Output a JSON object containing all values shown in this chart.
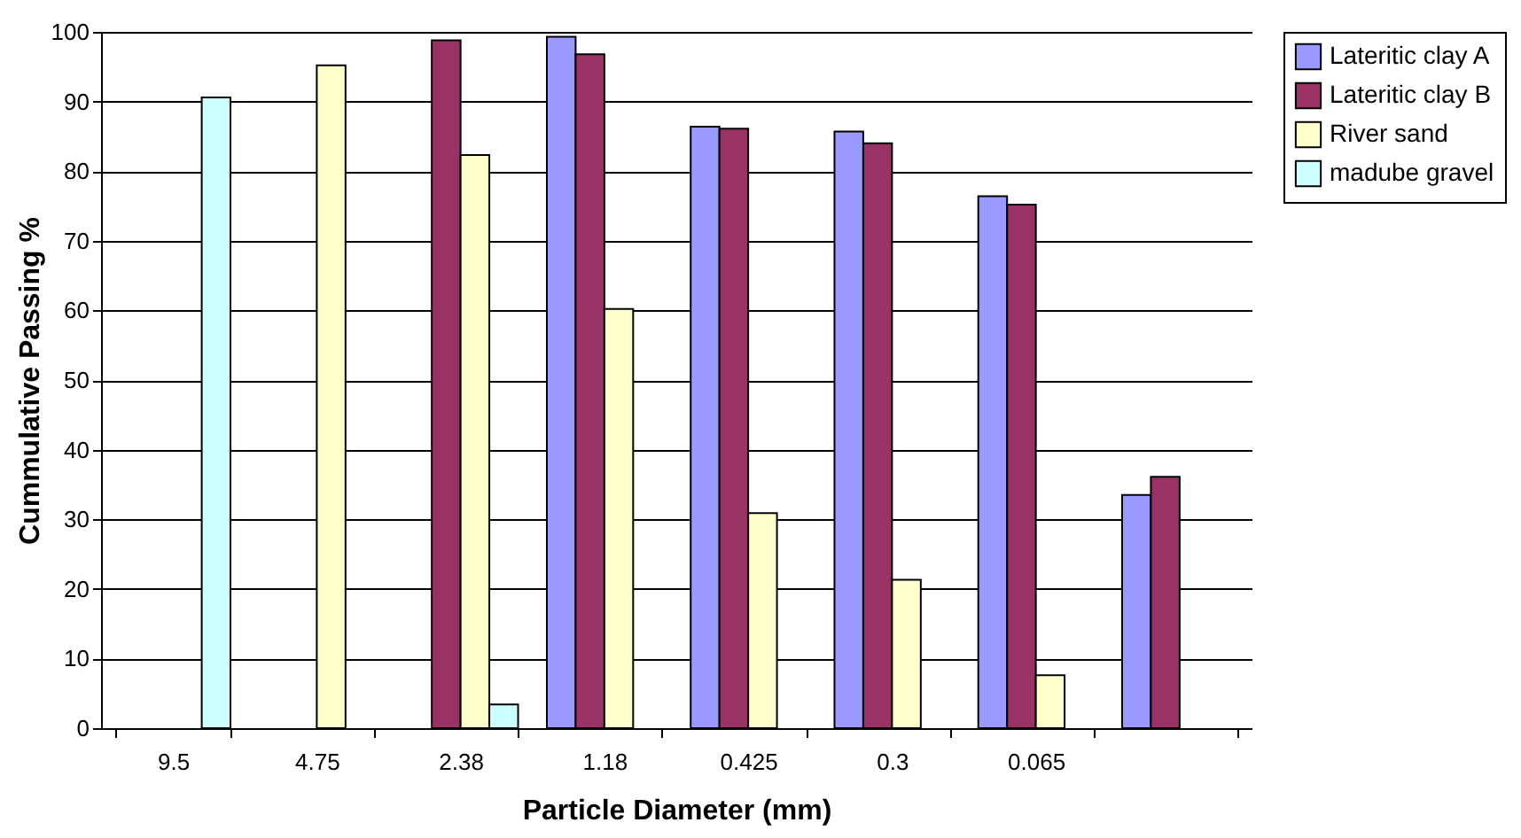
{
  "chart_data": {
    "type": "bar",
    "xlabel": "Particle Diameter (mm)",
    "ylabel": "Cummulative Passing %",
    "categories": [
      "9.5",
      "4.75",
      "2.38",
      "1.18",
      "0.425",
      "0.3",
      "0.065",
      null
    ],
    "series": [
      {
        "name": "Lateritic clay A",
        "color": "#9999ff",
        "values": [
          null,
          null,
          null,
          99.3,
          86.4,
          85.7,
          76.4,
          33.5
        ]
      },
      {
        "name": "Lateritic clay B",
        "color": "#993366",
        "values": [
          null,
          null,
          98.8,
          96.8,
          86.1,
          84.0,
          75.2,
          36.1
        ]
      },
      {
        "name": "River sand",
        "color": "#ffffcc",
        "values": [
          null,
          95.2,
          82.3,
          60.2,
          30.9,
          21.3,
          7.6,
          null
        ]
      },
      {
        "name": "madube gravel",
        "color": "#ccffff",
        "values": [
          90.6,
          null,
          3.4,
          null,
          null,
          null,
          null,
          null
        ]
      }
    ],
    "ylim": [
      0,
      100
    ],
    "yticks": [
      0,
      10,
      20,
      30,
      40,
      50,
      60,
      70,
      80,
      90,
      100
    ],
    "grid": "y",
    "legend": "right"
  }
}
